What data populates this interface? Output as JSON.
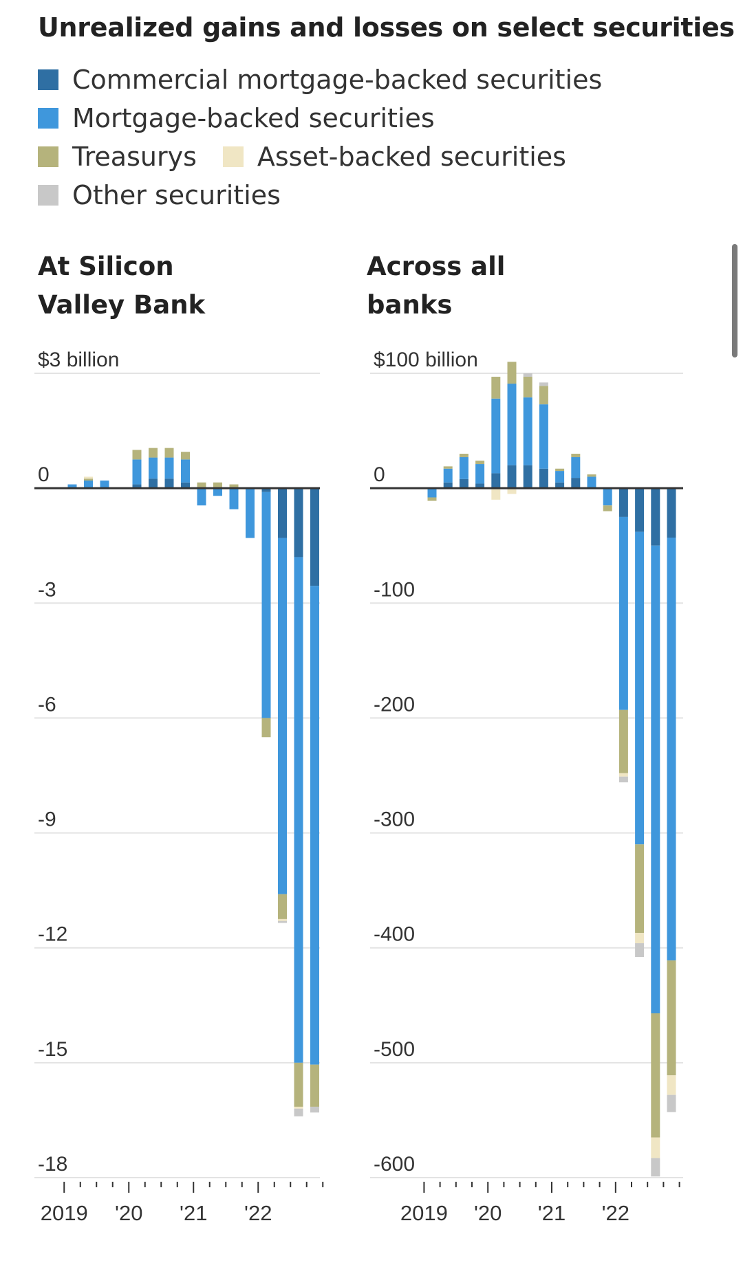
{
  "title": "Unrealized gains and losses on select securities",
  "legend": [
    {
      "id": "cmbs",
      "label": "Commercial mortgage-backed securities",
      "color": "#2f6fa3"
    },
    {
      "id": "mbs",
      "label": "Mortgage-backed securities",
      "color": "#3f97dc"
    },
    {
      "id": "treasury",
      "label": "Treasurys",
      "color": "#b5b37c"
    },
    {
      "id": "abs",
      "label": "Asset-backed securities",
      "color": "#f0e6c4"
    },
    {
      "id": "other",
      "label": "Other securities",
      "color": "#c8c8c8"
    }
  ],
  "chart_data": [
    {
      "type": "bar",
      "stacked": true,
      "title": "At Silicon Valley Bank",
      "title_lines": [
        "At Silicon",
        "Valley Bank"
      ],
      "unit": "$3 billion",
      "ylim": [
        -18,
        3
      ],
      "yticks": [
        3,
        0,
        -3,
        -6,
        -9,
        -12,
        -15,
        -18
      ],
      "ytick_labels": [
        "$3 billion",
        "0",
        "-3",
        "-6",
        "-9",
        "-12",
        "-15",
        "-18"
      ],
      "x_labels": [
        "2019",
        "'20",
        "'21",
        "'22"
      ],
      "quarters": 16,
      "series": [
        {
          "name": "Commercial mortgage-backed securities",
          "pos": [
            0,
            0,
            0,
            0,
            0.1,
            0.25,
            0.25,
            0.15,
            0,
            0,
            0,
            0,
            0,
            0,
            0,
            0
          ],
          "neg": [
            0,
            0,
            0,
            0,
            0,
            0,
            0,
            0,
            0,
            0,
            0,
            0,
            -0.1,
            -1.3,
            -1.8,
            -2.55
          ]
        },
        {
          "name": "Mortgage-backed securities",
          "pos": [
            0.1,
            0.2,
            0.2,
            0,
            0.65,
            0.55,
            0.55,
            0.6,
            0,
            0,
            0,
            0,
            0,
            0,
            0,
            0
          ],
          "neg": [
            0,
            0,
            0,
            0,
            0,
            0,
            0,
            0,
            -0.45,
            -0.2,
            -0.55,
            -1.3,
            -5.9,
            -9.3,
            -13.2,
            -12.5
          ]
        },
        {
          "name": "Treasurys",
          "pos": [
            0,
            0.05,
            0,
            0,
            0.25,
            0.25,
            0.25,
            0.2,
            0.15,
            0.15,
            0.1,
            0,
            0,
            0,
            0,
            0
          ],
          "neg": [
            0,
            0,
            0,
            0,
            0,
            0,
            0,
            0,
            0,
            0,
            0,
            0,
            -0.5,
            -0.65,
            -1.15,
            -1.1
          ]
        },
        {
          "name": "Asset-backed securities",
          "pos": [
            0,
            0.05,
            0,
            0,
            0,
            0,
            0,
            0,
            0,
            0,
            0,
            0,
            0,
            0,
            0,
            0
          ],
          "neg": [
            0,
            0,
            0,
            0,
            0,
            0,
            0,
            0,
            0,
            0,
            0,
            0,
            0,
            -0.05,
            -0.05,
            0
          ]
        },
        {
          "name": "Other securities",
          "pos": [
            0,
            0,
            0,
            0,
            0,
            0,
            0,
            0,
            0,
            0,
            0,
            0,
            0,
            0,
            0,
            0
          ],
          "neg": [
            0,
            0,
            0,
            0,
            0,
            0,
            0,
            0,
            0,
            0,
            0,
            0,
            0,
            -0.05,
            -0.2,
            -0.15
          ]
        }
      ]
    },
    {
      "type": "bar",
      "stacked": true,
      "title": "Across all banks",
      "title_lines": [
        "Across all",
        "banks"
      ],
      "unit": "$100 billion",
      "ylim": [
        -600,
        100
      ],
      "yticks": [
        100,
        0,
        -100,
        -200,
        -300,
        -400,
        -500,
        -600
      ],
      "ytick_labels": [
        "$100 billion",
        "0",
        "-100",
        "-200",
        "-300",
        "-400",
        "-500",
        "-600"
      ],
      "x_labels": [
        "2019",
        "'20",
        "'21",
        "'22"
      ],
      "quarters": 16,
      "series": [
        {
          "name": "Commercial mortgage-backed securities",
          "pos": [
            0,
            5,
            8,
            4,
            13,
            20,
            20,
            17,
            5,
            9,
            0,
            0,
            0,
            0,
            0,
            0
          ],
          "neg": [
            0,
            0,
            0,
            0,
            0,
            0,
            0,
            0,
            0,
            0,
            0,
            0,
            -25,
            -38,
            -50,
            -43
          ]
        },
        {
          "name": "Mortgage-backed securities",
          "pos": [
            0,
            12,
            19,
            17,
            65,
            71,
            59,
            56,
            10,
            18,
            10,
            0,
            0,
            0,
            0,
            0
          ],
          "neg": [
            -8,
            0,
            0,
            0,
            0,
            0,
            0,
            0,
            0,
            0,
            0,
            -15,
            -168,
            -272,
            -407,
            -368
          ]
        },
        {
          "name": "Treasurys",
          "pos": [
            0,
            2,
            3,
            3,
            19,
            19,
            18,
            16,
            2,
            3,
            2,
            0,
            0,
            0,
            0,
            0
          ],
          "neg": [
            -3,
            0,
            0,
            0,
            0,
            0,
            0,
            0,
            0,
            0,
            0,
            -5,
            -55,
            -77,
            -108,
            -100
          ]
        },
        {
          "name": "Asset-backed securities",
          "pos": [
            0,
            0,
            0,
            0,
            0,
            0,
            0,
            0,
            0,
            0,
            0,
            0,
            0,
            0,
            0,
            0
          ],
          "neg": [
            0,
            0,
            0,
            0,
            -10,
            -5,
            0,
            0,
            0,
            0,
            0,
            0,
            -3,
            -9,
            -18,
            -17
          ]
        },
        {
          "name": "Other securities",
          "pos": [
            0,
            0,
            0,
            0,
            0,
            0,
            3,
            3,
            0,
            0,
            0,
            0,
            0,
            0,
            0,
            0
          ],
          "neg": [
            0,
            0,
            0,
            0,
            0,
            0,
            0,
            0,
            0,
            0,
            0,
            0,
            -5,
            -12,
            -16,
            -15
          ]
        }
      ]
    }
  ]
}
